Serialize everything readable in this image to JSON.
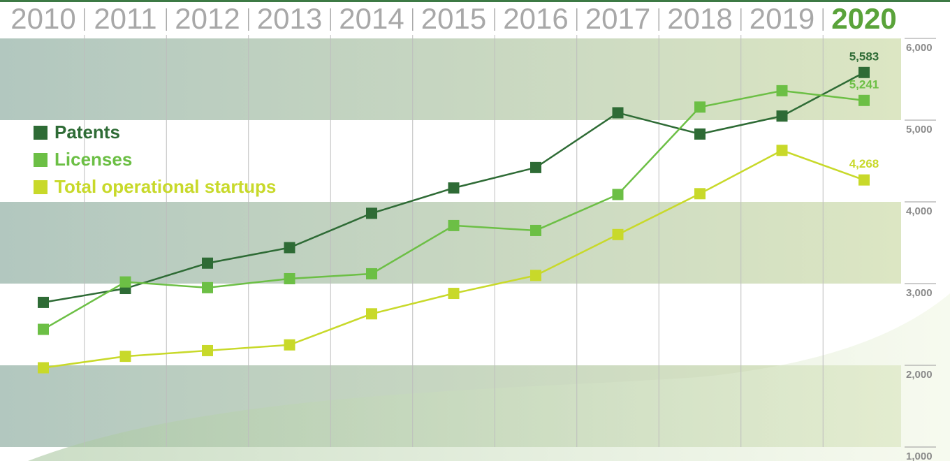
{
  "chart_data": {
    "type": "line",
    "categories": [
      "2010",
      "2011",
      "2012",
      "2013",
      "2014",
      "2015",
      "2016",
      "2017",
      "2018",
      "2019",
      "2020"
    ],
    "series": [
      {
        "name": "Patents",
        "color": "#2e6b35",
        "values": [
          2770,
          2940,
          3250,
          3440,
          3860,
          4170,
          4420,
          5090,
          4830,
          5050,
          5583
        ],
        "value_labels": [
          null,
          null,
          null,
          null,
          null,
          null,
          null,
          null,
          null,
          null,
          "5,583"
        ]
      },
      {
        "name": "Licenses",
        "color": "#6cbf45",
        "values": [
          2440,
          3020,
          2950,
          3060,
          3120,
          3710,
          3650,
          4090,
          5160,
          5360,
          5241
        ],
        "value_labels": [
          null,
          null,
          null,
          null,
          null,
          null,
          null,
          null,
          null,
          null,
          "5,241"
        ]
      },
      {
        "name": "Total operational startups",
        "color": "#c8d92a",
        "values": [
          1970,
          2110,
          2180,
          2250,
          2630,
          2880,
          3100,
          3600,
          4100,
          4630,
          4268
        ],
        "value_labels": [
          null,
          null,
          null,
          null,
          null,
          null,
          null,
          null,
          null,
          null,
          "4,268"
        ]
      }
    ],
    "ylim": [
      1000,
      6000
    ],
    "yticks": [
      {
        "value": 1000,
        "label": "1,000"
      },
      {
        "value": 2000,
        "label": "2,000"
      },
      {
        "value": 3000,
        "label": "3,000"
      },
      {
        "value": 4000,
        "label": "4,000"
      },
      {
        "value": 5000,
        "label": "5,000"
      },
      {
        "value": 6000,
        "label": "6,000"
      }
    ],
    "grid": true
  }
}
